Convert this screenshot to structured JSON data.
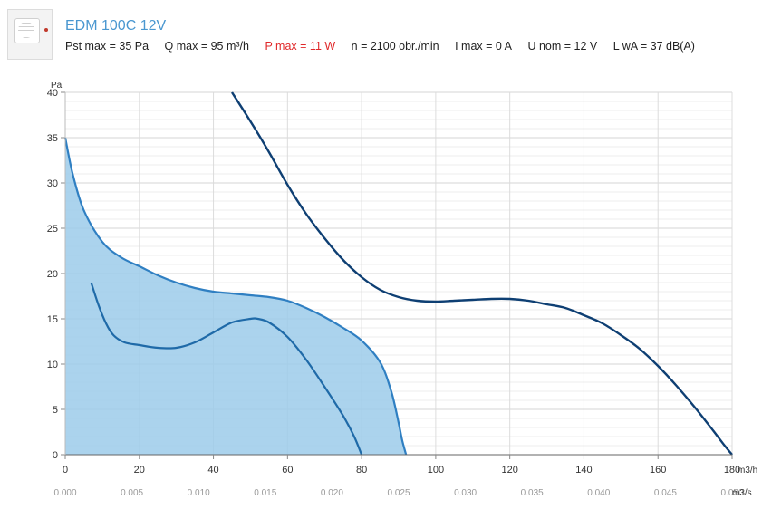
{
  "header": {
    "title": "EDM 100C 12V",
    "specs": [
      {
        "text": "Pst max = 35 Pa",
        "highlight": false
      },
      {
        "text": "Q max = 95 m³/h",
        "highlight": false
      },
      {
        "text": "P max = 11 W",
        "highlight": true
      },
      {
        "text": "n = 2100 obr./min",
        "highlight": false
      },
      {
        "text": "I max = 0 A",
        "highlight": false
      },
      {
        "text": "U nom = 12 V",
        "highlight": false
      },
      {
        "text": "L wA = 37 dB(A)",
        "highlight": false
      }
    ]
  },
  "chart_data": {
    "type": "line",
    "ylabel": "Pa",
    "xlabel": "m3/h",
    "x2label": "m3/s",
    "xlim": [
      0,
      180
    ],
    "ylim": [
      0,
      40
    ],
    "x_ticks": [
      0,
      20,
      40,
      60,
      80,
      100,
      120,
      140,
      160,
      180
    ],
    "y_ticks": [
      0,
      5,
      10,
      15,
      20,
      25,
      30,
      35,
      40
    ],
    "x2_ticks": [
      "0.000",
      "0.005",
      "0.010",
      "0.015",
      "0.020",
      "0.025",
      "0.030",
      "0.035",
      "0.040",
      "0.045",
      "0.050"
    ],
    "grid": true,
    "colors": {
      "fan": "#2f7fc2",
      "fill": "#9ccbea",
      "dark": "#0e3f73"
    },
    "series": [
      {
        "role": "fan-curve",
        "fill": true,
        "points": [
          [
            0,
            35
          ],
          [
            2,
            31
          ],
          [
            5,
            27
          ],
          [
            10,
            23.5
          ],
          [
            15,
            21.8
          ],
          [
            20,
            20.8
          ],
          [
            25,
            19.8
          ],
          [
            30,
            19
          ],
          [
            35,
            18.4
          ],
          [
            40,
            18
          ],
          [
            45,
            17.8
          ],
          [
            50,
            17.6
          ],
          [
            55,
            17.4
          ],
          [
            60,
            17
          ],
          [
            65,
            16.2
          ],
          [
            70,
            15.2
          ],
          [
            75,
            14
          ],
          [
            80,
            12.6
          ],
          [
            85,
            10.2
          ],
          [
            88,
            7
          ],
          [
            90,
            3.5
          ],
          [
            91,
            1.5
          ],
          [
            92,
            0
          ]
        ]
      },
      {
        "role": "inner-curve",
        "fill": false,
        "points": [
          [
            7,
            19
          ],
          [
            9,
            16.5
          ],
          [
            11,
            14.5
          ],
          [
            13,
            13.2
          ],
          [
            16,
            12.4
          ],
          [
            20,
            12.1
          ],
          [
            25,
            11.8
          ],
          [
            30,
            11.8
          ],
          [
            35,
            12.4
          ],
          [
            40,
            13.5
          ],
          [
            45,
            14.6
          ],
          [
            50,
            15
          ],
          [
            52,
            15
          ],
          [
            55,
            14.6
          ],
          [
            60,
            13
          ],
          [
            65,
            10.5
          ],
          [
            70,
            7.5
          ],
          [
            75,
            4.3
          ],
          [
            78,
            2
          ],
          [
            80,
            0
          ]
        ]
      },
      {
        "role": "outer-curve",
        "fill": false,
        "points": [
          [
            45,
            40
          ],
          [
            50,
            36.8
          ],
          [
            55,
            33.4
          ],
          [
            60,
            29.8
          ],
          [
            65,
            26.6
          ],
          [
            70,
            23.9
          ],
          [
            75,
            21.5
          ],
          [
            80,
            19.6
          ],
          [
            85,
            18.2
          ],
          [
            90,
            17.4
          ],
          [
            95,
            17
          ],
          [
            100,
            16.9
          ],
          [
            105,
            17
          ],
          [
            110,
            17.1
          ],
          [
            115,
            17.2
          ],
          [
            120,
            17.2
          ],
          [
            125,
            17
          ],
          [
            130,
            16.6
          ],
          [
            135,
            16.2
          ],
          [
            140,
            15.4
          ],
          [
            145,
            14.5
          ],
          [
            150,
            13.2
          ],
          [
            155,
            11.7
          ],
          [
            160,
            9.8
          ],
          [
            165,
            7.6
          ],
          [
            170,
            5.2
          ],
          [
            175,
            2.6
          ],
          [
            178,
            1
          ],
          [
            180,
            0
          ]
        ]
      }
    ]
  }
}
